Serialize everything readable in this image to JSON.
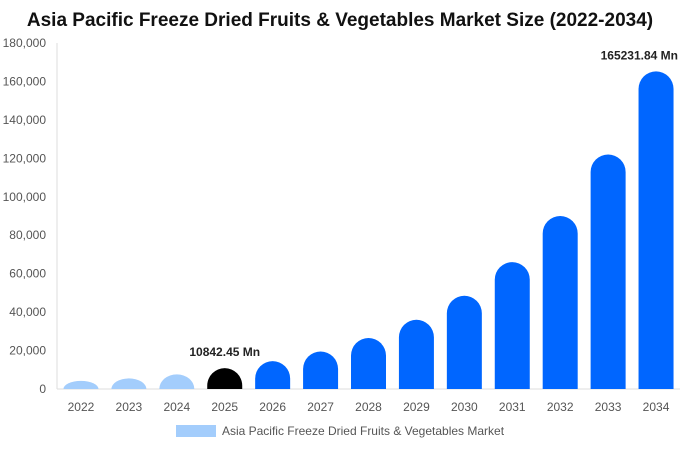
{
  "chart_data": {
    "type": "bar",
    "title": "Asia Pacific Freeze Dried Fruits & Vegetables Market Size (2022-2034)",
    "categories": [
      "2022",
      "2023",
      "2024",
      "2025",
      "2026",
      "2027",
      "2028",
      "2029",
      "2030",
      "2031",
      "2032",
      "2033",
      "2034"
    ],
    "series": [
      {
        "name": "Asia Pacific Freeze Dried Fruits & Vegetables Market",
        "values": [
          4200,
          5500,
          7600,
          10842.45,
          14500,
          19500,
          26500,
          36000,
          48500,
          66000,
          90000,
          122000,
          165231.84
        ]
      }
    ],
    "ylim": [
      0,
      180000
    ],
    "yticks": [
      "0",
      "20,000",
      "40,000",
      "60,000",
      "80,000",
      "100,000",
      "120,000",
      "140,000",
      "160,000",
      "180,000"
    ],
    "ytick_values": [
      0,
      20000,
      40000,
      60000,
      80000,
      100000,
      120000,
      140000,
      160000,
      180000
    ],
    "annotations": [
      {
        "category": "2025",
        "text": "10842.45 Mn"
      },
      {
        "category": "2034",
        "text": "165231.84 Mn"
      }
    ],
    "bar_colors": {
      "historical": "#a3cdfc",
      "base_year": "#000000",
      "forecast": "#0066ff"
    },
    "historical_categories": [
      "2022",
      "2023",
      "2024"
    ],
    "base_year_category": "2025",
    "legend": {
      "label": "Asia Pacific Freeze Dried Fruits & Vegetables Market",
      "color": "#a3cdfc",
      "placement": "bottom"
    },
    "grid": false
  }
}
